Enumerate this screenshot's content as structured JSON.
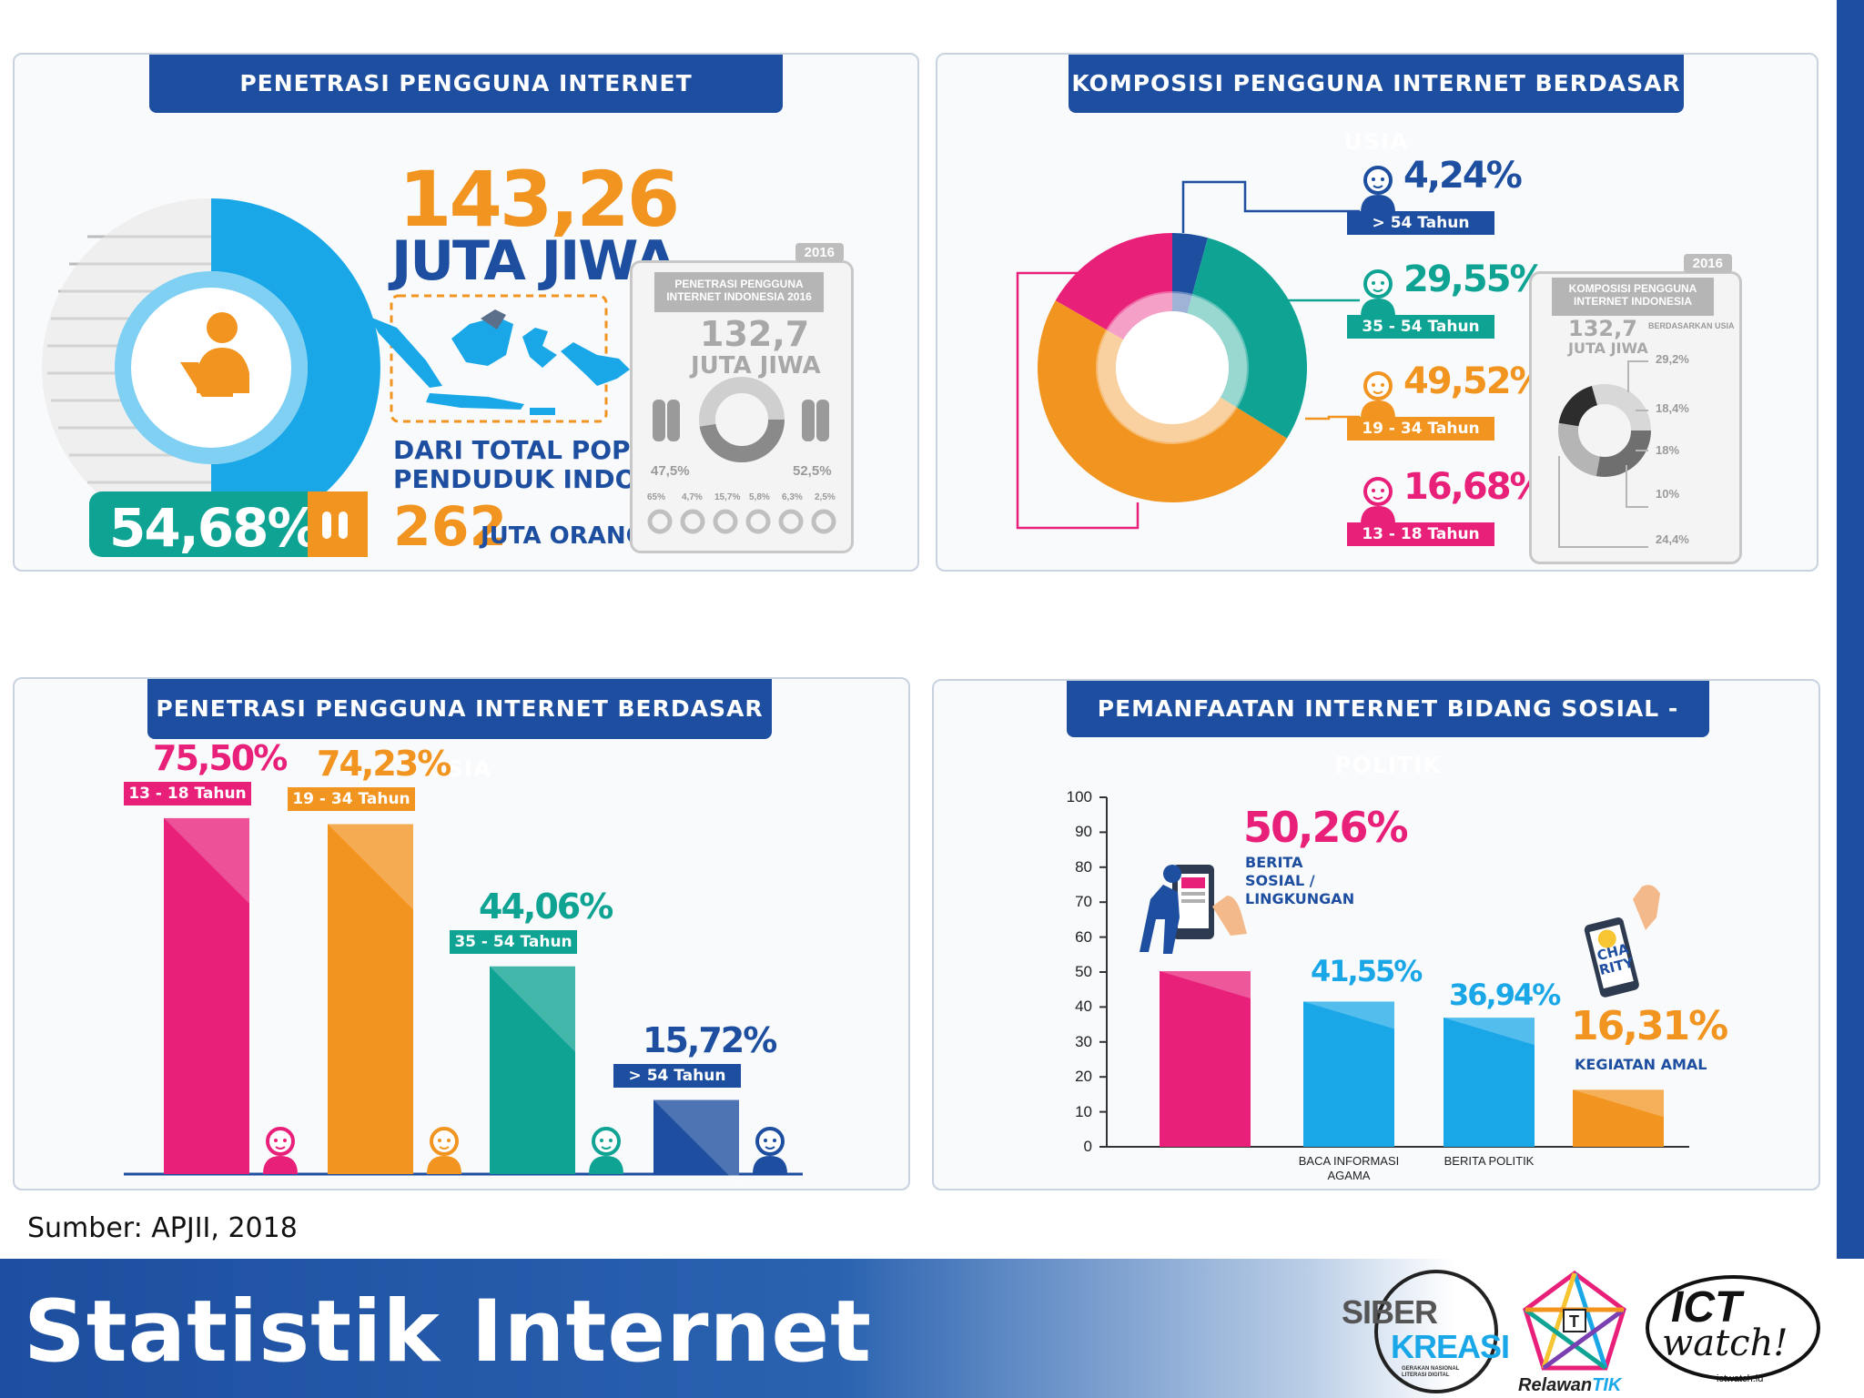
{
  "colors": {
    "navy": "#1d4e9f",
    "cyan": "#1aa7e8",
    "orange": "#f29420",
    "teal": "#0fa393",
    "pink": "#e8207a",
    "darkblue": "#1d4e9f",
    "gray": "#b0b0b0"
  },
  "panel1": {
    "title": "PENETRASI PENGGUNA INTERNET",
    "big_number": "143,26",
    "big_unit": "JUTA JIWA",
    "percent": "54,68%",
    "population_text_1": "DARI TOTAL POPULASI",
    "population_text_2": "PENDUDUK INDONESIA",
    "population_number": "262",
    "population_unit": "JUTA ORANG",
    "inset": {
      "year": "2016",
      "title_1": "PENETRASI PENGGUNA",
      "title_2": "INTERNET INDONESIA 2016",
      "number": "132,7",
      "unit": "JUTA JIWA",
      "left_pct": "47,5%",
      "right_pct": "52,5%",
      "pcts": [
        "65%",
        "4,7%",
        "15,7%",
        "5,8%",
        "6,3%",
        "2,5%"
      ]
    },
    "penetration_fraction": 0.5468
  },
  "panel2": {
    "title": "KOMPOSISI PENGGUNA INTERNET BERDASAR USIA",
    "inset": {
      "year": "2016",
      "title_1": "KOMPOSISI PENGGUNA",
      "title_2": "INTERNET INDONESIA",
      "number": "132,7",
      "unit": "JUTA JIWA",
      "sub": "BERDASARKAN USIA",
      "pcts": [
        "29,2%",
        "18,4%",
        "18%",
        "10%",
        "24,4%"
      ]
    }
  },
  "panel3": {
    "title": "PENETRASI PENGGUNA INTERNET BERDASAR USIA"
  },
  "panel4": {
    "title": "PEMANFAATAN INTERNET BIDANG SOSIAL - POLITIK",
    "charity": "CHA RITY"
  },
  "chart_data": [
    {
      "type": "pie",
      "title": "KOMPOSISI PENGGUNA INTERNET BERDASAR USIA",
      "categories": [
        "> 54 Tahun",
        "35 - 54 Tahun",
        "19 - 34 Tahun",
        "13 - 18 Tahun"
      ],
      "values": [
        4.24,
        29.55,
        49.52,
        16.68
      ],
      "labels": [
        "4,24%",
        "29,55%",
        "49,52%",
        "16,68%"
      ],
      "colors": [
        "#1d4e9f",
        "#0fa393",
        "#f29420",
        "#e8207a"
      ]
    },
    {
      "type": "bar",
      "title": "PENETRASI PENGGUNA INTERNET BERDASAR USIA",
      "categories": [
        "13 - 18 Tahun",
        "19 - 34 Tahun",
        "35 - 54 Tahun",
        "> 54 Tahun"
      ],
      "values": [
        75.5,
        74.23,
        44.06,
        15.72
      ],
      "labels": [
        "75,50%",
        "74,23%",
        "44,06%",
        "15,72%"
      ],
      "colors": [
        "#e8207a",
        "#f29420",
        "#0fa393",
        "#1d4e9f"
      ],
      "ylim": [
        0,
        100
      ]
    },
    {
      "type": "bar",
      "title": "PEMANFAATAN INTERNET BIDANG SOSIAL - POLITIK",
      "categories": [
        "BERITA SOSIAL / LINGKUNGAN",
        "BACA INFORMASI AGAMA",
        "BERITA POLITIK",
        "KEGIATAN AMAL"
      ],
      "axis_labels": [
        "",
        "BACA INFORMASI AGAMA",
        "BERITA POLITIK",
        ""
      ],
      "annotations": [
        "BERITA SOSIAL / LINGKUNGAN",
        "",
        "",
        "KEGIATAN AMAL"
      ],
      "values": [
        50.26,
        41.55,
        36.94,
        16.31
      ],
      "labels": [
        "50,26%",
        "41,55%",
        "36,94%",
        "16,31%"
      ],
      "colors": [
        "#e8207a",
        "#1aa7e8",
        "#1aa7e8",
        "#f29420"
      ],
      "label_colors": [
        "#e8207a",
        "#1aa7e8",
        "#1aa7e8",
        "#f29420"
      ],
      "yticks": [
        0,
        10,
        20,
        30,
        40,
        50,
        60,
        70,
        80,
        90,
        100
      ],
      "ylim": [
        0,
        100
      ]
    }
  ],
  "source": "Sumber: APJII, 2018",
  "footer_title": "Statistik Internet",
  "logos": {
    "siber_1": "SIBER",
    "siber_2": "KREASI",
    "siber_sub": "GERAKAN NASIONAL LITERASI DIGITAL",
    "relawan": "Relawan",
    "tik": "TIK",
    "ict_1": "ICT",
    "ict_2": "watch!",
    "ict_url": "ictwatch.id"
  }
}
